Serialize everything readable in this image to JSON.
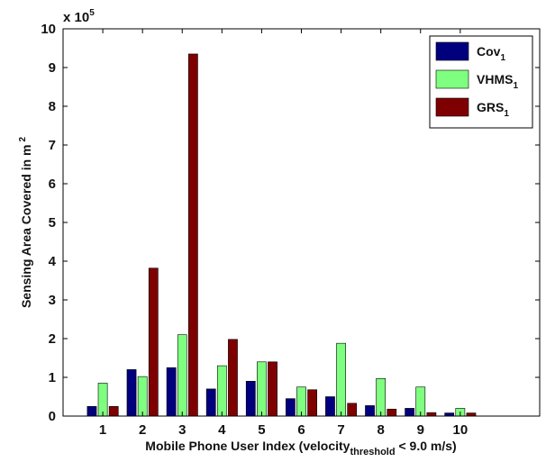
{
  "chart_data": {
    "type": "bar",
    "categories": [
      "1",
      "2",
      "3",
      "4",
      "5",
      "6",
      "7",
      "8",
      "9",
      "10"
    ],
    "series": [
      {
        "name": "Cov",
        "subscript": "1",
        "color": "#00007f",
        "values": [
          25000,
          120000,
          125000,
          70000,
          90000,
          45000,
          50000,
          27000,
          20000,
          8000
        ]
      },
      {
        "name": "VHMS",
        "subscript": "1",
        "color": "#7fff7f",
        "values": [
          85000,
          102000,
          210000,
          130000,
          140000,
          75000,
          188000,
          97000,
          75000,
          20000
        ]
      },
      {
        "name": "GRS",
        "subscript": "1",
        "color": "#7f0000",
        "values": [
          25000,
          382000,
          935000,
          198000,
          140000,
          68000,
          33000,
          18000,
          9000,
          8000
        ]
      }
    ],
    "ylim": [
      0,
      1000000
    ],
    "yticks": [
      "0",
      "1",
      "2",
      "3",
      "4",
      "5",
      "6",
      "7",
      "8",
      "9",
      "10"
    ],
    "y_multiplier_base": "x 10",
    "y_multiplier_exp": "5",
    "ylabel_main": "Sensing Area Covered in m",
    "ylabel_sup": "2",
    "xlabel_main": "Mobile Phone User Index (velocity",
    "xlabel_sub": "threshold",
    "xlabel_tail": " < 9.0 m/s)",
    "legend_position": "top-right",
    "grid": false
  }
}
